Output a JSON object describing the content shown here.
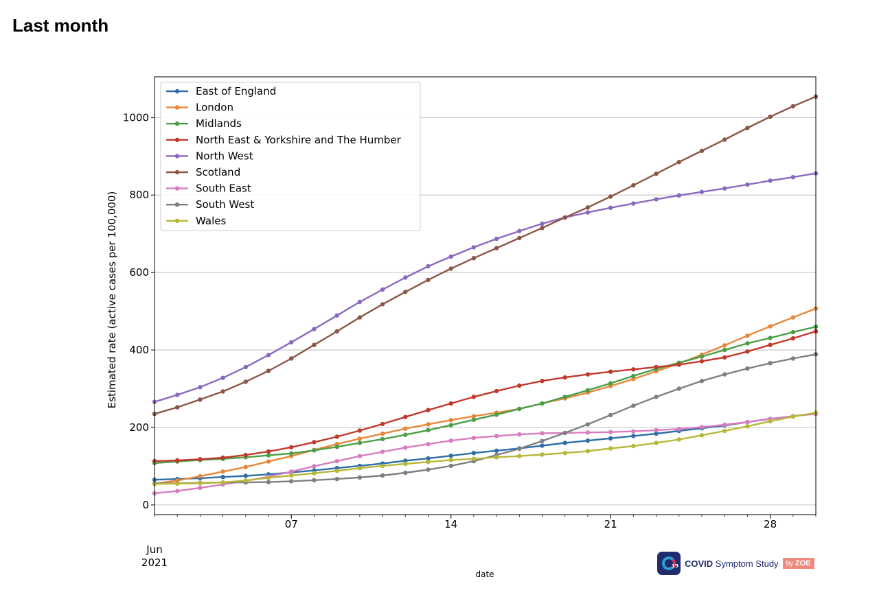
{
  "page": {
    "title": "Last month"
  },
  "logo": {
    "badge": "19",
    "brand": "COVID",
    "name": "Symptom Study",
    "by": "by",
    "company": "ZOE"
  },
  "chart_data": {
    "type": "line",
    "title": "",
    "xlabel": "date",
    "ylabel": "Estimated rate (active cases per 100,000)",
    "xlim": [
      "2021-06-01",
      "2021-06-30"
    ],
    "ylim": [
      -25,
      1105
    ],
    "x_ticks": [
      "2021-06-07",
      "2021-06-14",
      "2021-06-21",
      "2021-06-28"
    ],
    "x_tick_labels": [
      "07",
      "14",
      "21",
      "28"
    ],
    "x_offset_label": [
      "Jun",
      "2021"
    ],
    "y_ticks": [
      0,
      200,
      400,
      600,
      800,
      1000
    ],
    "grid": "horizontal",
    "legend": "top-left",
    "x": [
      "2021-06-01",
      "2021-06-02",
      "2021-06-03",
      "2021-06-04",
      "2021-06-05",
      "2021-06-06",
      "2021-06-07",
      "2021-06-08",
      "2021-06-09",
      "2021-06-10",
      "2021-06-11",
      "2021-06-12",
      "2021-06-13",
      "2021-06-14",
      "2021-06-15",
      "2021-06-16",
      "2021-06-17",
      "2021-06-18",
      "2021-06-19",
      "2021-06-20",
      "2021-06-21",
      "2021-06-22",
      "2021-06-23",
      "2021-06-24",
      "2021-06-25",
      "2021-06-26",
      "2021-06-27",
      "2021-06-28",
      "2021-06-29",
      "2021-06-30"
    ],
    "series": [
      {
        "name": "East of England",
        "color": "#2e6fa8",
        "values": [
          65,
          67,
          69,
          72,
          75,
          79,
          84,
          89,
          95,
          101,
          107,
          114,
          120,
          127,
          134,
          140,
          146,
          153,
          160,
          166,
          172,
          178,
          184,
          191,
          198,
          205,
          214,
          222,
          229,
          236
        ]
      },
      {
        "name": "London",
        "color": "#e8873a",
        "values": [
          55,
          63,
          74,
          86,
          98,
          112,
          126,
          142,
          157,
          171,
          184,
          197,
          208,
          219,
          229,
          238,
          248,
          262,
          275,
          290,
          307,
          325,
          345,
          365,
          388,
          412,
          437,
          461,
          484,
          507
        ]
      },
      {
        "name": "Midlands",
        "color": "#4a9e46",
        "values": [
          108,
          112,
          116,
          119,
          123,
          128,
          133,
          141,
          150,
          160,
          170,
          181,
          193,
          206,
          220,
          233,
          248,
          262,
          279,
          296,
          314,
          333,
          351,
          367,
          383,
          400,
          417,
          431,
          446,
          460
        ]
      },
      {
        "name": "North East & Yorkshire and The Humber",
        "color": "#c0392b",
        "values": [
          113,
          115,
          118,
          122,
          129,
          138,
          149,
          162,
          176,
          192,
          209,
          227,
          245,
          262,
          279,
          294,
          308,
          320,
          329,
          337,
          344,
          350,
          356,
          362,
          371,
          381,
          396,
          413,
          430,
          448
        ]
      },
      {
        "name": "North West",
        "color": "#8a68c0",
        "values": [
          266,
          284,
          304,
          328,
          356,
          387,
          420,
          454,
          489,
          524,
          556,
          587,
          616,
          641,
          665,
          687,
          707,
          726,
          742,
          755,
          767,
          778,
          789,
          799,
          808,
          817,
          827,
          837,
          846,
          856
        ]
      },
      {
        "name": "Scotland",
        "color": "#8b5547",
        "values": [
          235,
          252,
          272,
          293,
          318,
          346,
          378,
          413,
          448,
          484,
          518,
          550,
          581,
          610,
          637,
          663,
          689,
          715,
          742,
          768,
          796,
          825,
          855,
          885,
          914,
          943,
          973,
          1002,
          1029,
          1054
        ]
      },
      {
        "name": "South East",
        "color": "#d77cc0",
        "values": [
          30,
          36,
          44,
          53,
          62,
          73,
          86,
          100,
          113,
          126,
          137,
          148,
          157,
          166,
          173,
          178,
          182,
          185,
          186,
          187,
          188,
          190,
          193,
          196,
          201,
          207,
          214,
          222,
          229,
          235
        ]
      },
      {
        "name": "South West",
        "color": "#7f7f7f",
        "values": [
          56,
          56,
          57,
          58,
          58,
          59,
          61,
          64,
          67,
          71,
          76,
          83,
          91,
          101,
          113,
          129,
          145,
          165,
          186,
          208,
          232,
          256,
          279,
          300,
          320,
          337,
          352,
          366,
          378,
          389
        ]
      },
      {
        "name": "Wales",
        "color": "#b7b73a",
        "values": [
          54,
          55,
          56,
          58,
          63,
          70,
          76,
          82,
          88,
          95,
          101,
          106,
          111,
          116,
          119,
          123,
          126,
          130,
          134,
          139,
          146,
          152,
          160,
          169,
          180,
          191,
          203,
          216,
          228,
          238
        ]
      }
    ]
  }
}
